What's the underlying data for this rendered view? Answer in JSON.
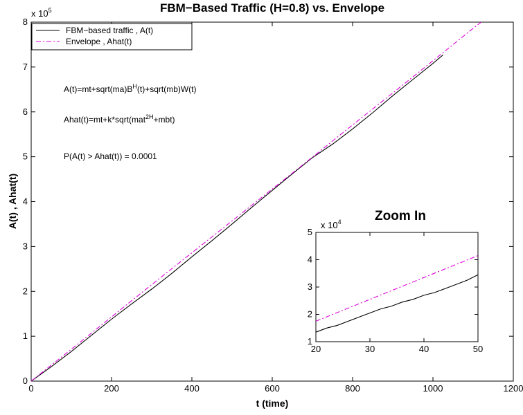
{
  "chart_data": [
    {
      "type": "line",
      "title": "FBM−Based Traffic (H=0.8) vs. Envelope",
      "xlabel": "t (time)",
      "ylabel": "A(t) , Ahat(t)",
      "xlim": [
        0,
        1200
      ],
      "ylim": [
        0,
        800000
      ],
      "x_ticks": [
        "0",
        "200",
        "400",
        "600",
        "800",
        "1000",
        "1200"
      ],
      "y_ticks": [
        "0",
        "1",
        "2",
        "3",
        "4",
        "5",
        "6",
        "7",
        "8"
      ],
      "y_multiplier": "x 10",
      "y_multiplier_exp": "5",
      "grid": false,
      "legend_position": "top-left",
      "series": [
        {
          "name": "FBM−based traffic , A(t)",
          "color": "#000000",
          "style": "solid",
          "x": [
            0,
            50,
            100,
            150,
            200,
            250,
            300,
            350,
            400,
            450,
            500,
            550,
            600,
            650,
            700,
            750,
            800,
            850,
            900,
            950,
            1000,
            1025
          ],
          "y": [
            0,
            32000,
            66000,
            102000,
            138000,
            172000,
            205000,
            240000,
            277000,
            313000,
            350000,
            388000,
            425000,
            462000,
            498000,
            528000,
            562000,
            598000,
            636000,
            672000,
            708000,
            727000
          ]
        },
        {
          "name": "Envelope , Ahat(t)",
          "color": "#dd00dd",
          "style": "dashdot",
          "x": [
            0,
            100,
            200,
            300,
            400,
            500,
            600,
            700,
            800,
            900,
            1000,
            1100,
            1120
          ],
          "y": [
            0,
            71000,
            143000,
            215000,
            286000,
            357000,
            428000,
            499000,
            571000,
            642000,
            714000,
            786000,
            800000
          ]
        }
      ],
      "annotations": [
        {
          "parts": [
            [
              "A(t)=mt+sqrt(ma)B",
              ""
            ],
            [
              "H",
              "sup"
            ],
            [
              "(t)+sqrt(mb)W(t)",
              ""
            ]
          ]
        },
        {
          "parts": [
            [
              "Ahat(t)=mt+k*sqrt(mat",
              ""
            ],
            [
              "2H",
              "sup"
            ],
            [
              "+mbt)",
              ""
            ]
          ]
        },
        {
          "parts": [
            [
              "P(A(t) > Ahat(t)) = 0.0001",
              ""
            ]
          ]
        }
      ]
    },
    {
      "type": "line",
      "title": "Zoom In",
      "xlim": [
        20,
        50
      ],
      "ylim": [
        10000,
        50000
      ],
      "x_ticks": [
        "20",
        "30",
        "40",
        "50"
      ],
      "y_ticks": [
        "1",
        "2",
        "3",
        "4",
        "5"
      ],
      "y_multiplier": "x 10",
      "y_multiplier_exp": "4",
      "series": [
        {
          "color": "#000000",
          "style": "solid",
          "x": [
            20,
            22,
            24,
            26,
            28,
            30,
            32,
            34,
            36,
            38,
            40,
            42,
            44,
            46,
            48,
            50
          ],
          "y": [
            13500,
            15000,
            16000,
            17500,
            19000,
            20500,
            22000,
            23000,
            24500,
            25500,
            27000,
            28000,
            29500,
            31000,
            32500,
            34500
          ]
        },
        {
          "color": "#dd00dd",
          "style": "dashdot",
          "x": [
            20,
            25,
            30,
            35,
            40,
            45,
            50
          ],
          "y": [
            17500,
            21500,
            25500,
            29500,
            33500,
            37500,
            41500
          ]
        }
      ]
    }
  ]
}
